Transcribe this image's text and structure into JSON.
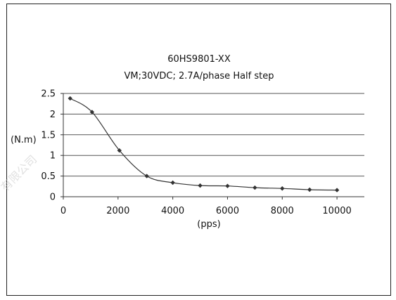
{
  "watermark": "有限公司",
  "chart_data": {
    "type": "line",
    "title": "60HS9801-XX",
    "subtitle": "VM;30VDC; 2.7A/phase Half step",
    "xlabel": "(pps)",
    "ylabel": "(N.m)",
    "xlim": [
      0,
      11000
    ],
    "ylim": [
      0,
      2.5
    ],
    "xticks": [
      "0",
      "2000",
      "4000",
      "6000",
      "8000",
      "10000"
    ],
    "yticks": [
      "0",
      "0.5",
      "1",
      "1.5",
      "2",
      "2.5"
    ],
    "grid": "horizontal",
    "series": [
      {
        "x": [
          250,
          1050,
          2050,
          3050,
          4000,
          5000,
          6000,
          7000,
          8000,
          9000,
          10000
        ],
        "y": [
          2.38,
          2.05,
          1.12,
          0.5,
          0.34,
          0.27,
          0.26,
          0.22,
          0.2,
          0.17,
          0.16
        ],
        "color": "#333333"
      }
    ]
  }
}
